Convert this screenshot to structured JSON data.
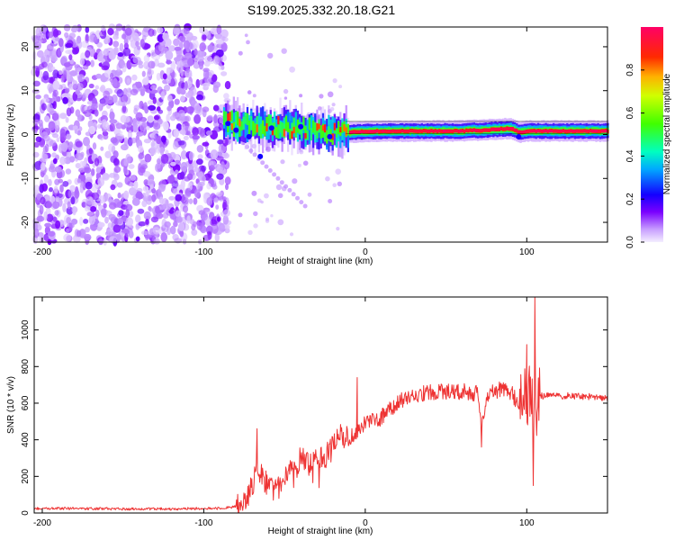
{
  "figure": {
    "title": "S199.2025.332.20.18.G21"
  },
  "chart_data": [
    {
      "type": "heatmap",
      "title": "",
      "xlabel": "Height of straight line (km)",
      "ylabel": "Frequency (Hz)",
      "xlim": [
        -205,
        150
      ],
      "ylim": [
        -24.5,
        24.5
      ],
      "xticks": [
        -200,
        -100,
        0,
        100
      ],
      "yticks": [
        -20,
        -10,
        0,
        10,
        20
      ],
      "grid": false,
      "colorbar": {
        "label": "Normalized spectral amplitude",
        "range": [
          0,
          1
        ],
        "ticks": [
          0.0,
          0.2,
          0.4,
          0.6,
          0.8
        ],
        "tick_labels": [
          "0.0",
          "0.2",
          "0.4",
          "0.6",
          "0.8"
        ]
      },
      "regions": [
        {
          "name": "noise",
          "x_range": [
            -205,
            -85
          ],
          "freq_range": [
            -24.5,
            24.5
          ],
          "amplitude_range": [
            0.02,
            0.12
          ]
        },
        {
          "name": "transition",
          "x_range": [
            -85,
            -10
          ],
          "freq_center_hz": [
            2.5,
            1.5,
            0.5
          ],
          "amplitude_range": [
            0.2,
            0.6
          ]
        },
        {
          "name": "tone",
          "x_range": [
            -10,
            150
          ],
          "freq_center_hz": 0.8,
          "amplitude": 0.95
        }
      ],
      "tone_track": {
        "x": [
          -88,
          -80,
          -70,
          -60,
          -50,
          -40,
          -30,
          -20,
          -10,
          0,
          20,
          40,
          60,
          65,
          70,
          80,
          90,
          95,
          100,
          110,
          130,
          150
        ],
        "freq": [
          3.5,
          2.5,
          2.0,
          1.8,
          1.5,
          1.2,
          1.0,
          0.6,
          0.5,
          0.7,
          0.8,
          0.8,
          0.8,
          1.0,
          0.9,
          1.2,
          1.4,
          0.5,
          0.8,
          0.8,
          0.8,
          0.8
        ]
      }
    },
    {
      "type": "line",
      "title": "",
      "xlabel": "Height of straight line (km)",
      "ylabel": "SNR (10 * v/v)",
      "xlim": [
        -205,
        150
      ],
      "ylim": [
        0,
        1180
      ],
      "xticks": [
        -200,
        -100,
        0,
        100
      ],
      "yticks": [
        0,
        200,
        400,
        600,
        800,
        1000
      ],
      "grid": false,
      "series": [
        {
          "name": "SNR",
          "color": "#ee3333",
          "x": [
            -205,
            -180,
            -150,
            -120,
            -100,
            -90,
            -80,
            -75,
            -70,
            -67,
            -64,
            -60,
            -55,
            -50,
            -45,
            -40,
            -35,
            -30,
            -25,
            -20,
            -15,
            -10,
            -5,
            0,
            5,
            10,
            15,
            20,
            25,
            30,
            40,
            50,
            60,
            70,
            72,
            75,
            80,
            85,
            90,
            95,
            100,
            103,
            105,
            107,
            110,
            120,
            130,
            140,
            150
          ],
          "values": [
            25,
            25,
            22,
            22,
            25,
            25,
            35,
            60,
            140,
            280,
            200,
            150,
            120,
            180,
            260,
            300,
            260,
            280,
            300,
            360,
            420,
            400,
            450,
            500,
            510,
            520,
            570,
            600,
            630,
            640,
            660,
            665,
            665,
            650,
            450,
            650,
            660,
            680,
            660,
            600,
            640,
            700,
            500,
            640,
            640,
            640,
            640,
            635,
            630
          ]
        }
      ],
      "peaks": [
        {
          "x": -67,
          "y": 460
        },
        {
          "x": -5,
          "y": 740
        },
        {
          "x": 72,
          "y": 360
        },
        {
          "x": 100,
          "y": 920
        },
        {
          "x": 105,
          "y": 1180
        },
        {
          "x": 104,
          "y": 150
        }
      ]
    }
  ],
  "colors": {
    "line": "#ee3333",
    "noise_purple": "#7a00ff",
    "tone_red": "#ff0000",
    "axis": "#000000"
  }
}
